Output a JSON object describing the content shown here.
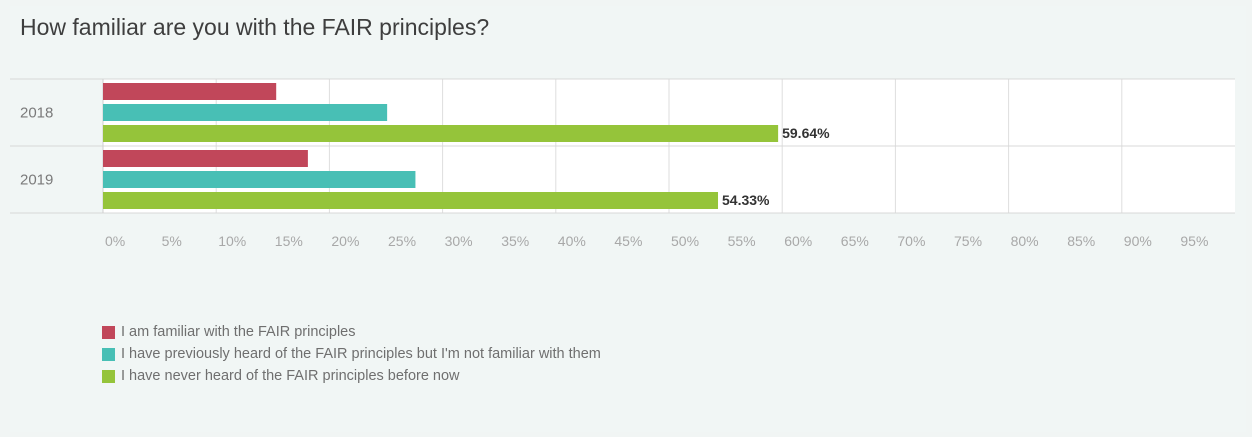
{
  "title": "How familiar are you with the FAIR principles?",
  "chart_data": {
    "type": "bar",
    "orientation": "horizontal",
    "categories": [
      "2018",
      "2019"
    ],
    "series": [
      {
        "name": "I am familiar with the FAIR principles",
        "color": "#c1475a",
        "values": [
          15.3,
          18.1
        ]
      },
      {
        "name": "I have previously heard of the FAIR principles but I'm not familiar with them",
        "color": "#48bfb5",
        "values": [
          25.1,
          27.6
        ]
      },
      {
        "name": "I have never heard of the FAIR principles before now",
        "color": "#95c43a",
        "values": [
          59.64,
          54.33
        ]
      }
    ],
    "data_labels": [
      {
        "category": "2018",
        "series": 2,
        "text": "59.64%"
      },
      {
        "category": "2019",
        "series": 2,
        "text": "54.33%"
      }
    ],
    "x_ticks": [
      "0%",
      "5%",
      "10%",
      "15%",
      "20%",
      "25%",
      "30%",
      "35%",
      "40%",
      "45%",
      "50%",
      "55%",
      "60%",
      "65%",
      "70%",
      "75%",
      "80%",
      "85%",
      "90%",
      "95%"
    ],
    "xlim": [
      0,
      100
    ],
    "grid": true,
    "legend": "bottom-left"
  }
}
